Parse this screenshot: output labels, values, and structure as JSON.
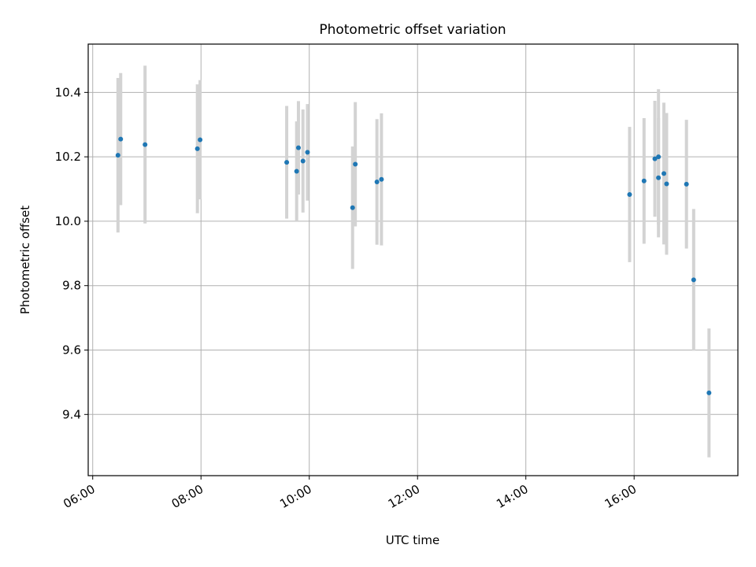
{
  "chart_data": {
    "type": "scatter",
    "title": "Photometric offset variation",
    "xlabel": "UTC time",
    "ylabel": "Photometric offset",
    "x_ticks": [
      "06:00",
      "08:00",
      "10:00",
      "12:00",
      "14:00",
      "16:00"
    ],
    "y_ticks": [
      "9.4",
      "9.6",
      "9.8",
      "10.0",
      "10.2",
      "10.4"
    ],
    "xlim": [
      "05:55",
      "17:55"
    ],
    "ylim": [
      9.21,
      10.55
    ],
    "grid": true,
    "colors": {
      "point": "#1f77b4",
      "errorbar": "#d3d3d3",
      "grid": "#b0b0b0"
    },
    "series": [
      {
        "points": [
          {
            "x": "06:28",
            "y": 10.205,
            "err": 0.24
          },
          {
            "x": "06:31",
            "y": 10.255,
            "err": 0.205
          },
          {
            "x": "06:58",
            "y": 10.238,
            "err": 0.245
          },
          {
            "x": "07:56",
            "y": 10.225,
            "err": 0.2
          },
          {
            "x": "07:59",
            "y": 10.253,
            "err": 0.185
          },
          {
            "x": "09:35",
            "y": 10.183,
            "err": 0.175
          },
          {
            "x": "09:46",
            "y": 10.155,
            "err": 0.155
          },
          {
            "x": "09:48",
            "y": 10.228,
            "err": 0.145
          },
          {
            "x": "09:53",
            "y": 10.187,
            "err": 0.16
          },
          {
            "x": "09:58",
            "y": 10.214,
            "err": 0.15
          },
          {
            "x": "10:48",
            "y": 10.042,
            "err": 0.19
          },
          {
            "x": "10:51",
            "y": 10.177,
            "err": 0.193
          },
          {
            "x": "11:15",
            "y": 10.122,
            "err": 0.195
          },
          {
            "x": "11:20",
            "y": 10.13,
            "err": 0.205
          },
          {
            "x": "15:55",
            "y": 10.083,
            "err": 0.21
          },
          {
            "x": "16:11",
            "y": 10.125,
            "err": 0.195
          },
          {
            "x": "16:23",
            "y": 10.194,
            "err": 0.18
          },
          {
            "x": "16:27",
            "y": 10.2,
            "err": 0.21
          },
          {
            "x": "16:27",
            "y": 10.135,
            "err": 0.185
          },
          {
            "x": "16:33",
            "y": 10.148,
            "err": 0.22
          },
          {
            "x": "16:36",
            "y": 10.116,
            "err": 0.22
          },
          {
            "x": "16:58",
            "y": 10.115,
            "err": 0.2
          },
          {
            "x": "17:06",
            "y": 9.818,
            "err": 0.22
          },
          {
            "x": "17:23",
            "y": 9.467,
            "err": 0.2
          }
        ]
      }
    ]
  }
}
